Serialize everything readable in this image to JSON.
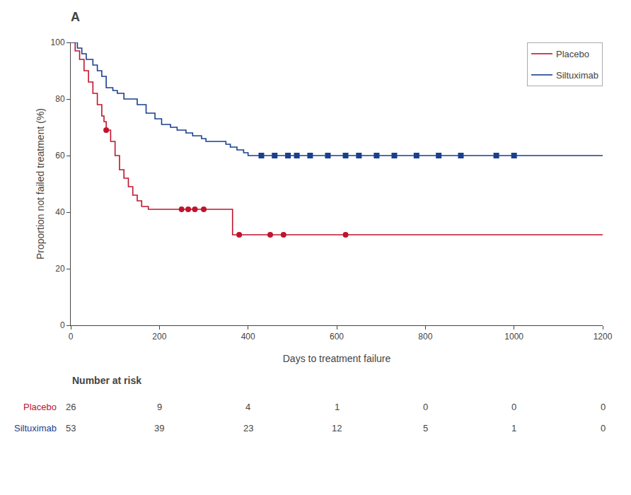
{
  "chart_data": {
    "type": "step",
    "title": "A",
    "xlabel": "Days to treatment failure",
    "ylabel": "Proportion not failed treatment (%)",
    "xlim": [
      0,
      1200
    ],
    "ylim": [
      0,
      100
    ],
    "xticks": [
      0,
      200,
      400,
      600,
      800,
      1000,
      1200
    ],
    "yticks": [
      0,
      20,
      40,
      60,
      80,
      100
    ],
    "grid": false,
    "legend": "upper right",
    "series": [
      {
        "name": "Placebo",
        "color": "#c0142c",
        "marker": "circle",
        "x": [
          0,
          10,
          20,
          30,
          40,
          50,
          60,
          70,
          75,
          80,
          90,
          100,
          110,
          120,
          130,
          140,
          150,
          160,
          175,
          200,
          215,
          230,
          250,
          260,
          280,
          365,
          410,
          430,
          460,
          480,
          620
        ],
        "values": [
          100,
          97,
          94,
          90,
          86,
          82,
          78,
          74,
          72,
          69,
          65,
          60,
          55,
          52,
          49,
          46,
          44,
          42,
          41,
          41,
          41,
          41,
          41,
          41,
          41,
          32,
          32,
          32,
          32,
          32,
          32
        ],
        "censored_x": [
          80,
          250,
          265,
          280,
          300,
          380,
          450,
          480,
          620
        ],
        "censored_values": [
          69,
          41,
          41,
          41,
          41,
          32,
          32,
          32,
          32
        ],
        "at_risk": [
          26,
          9,
          4,
          1,
          0,
          0,
          0
        ]
      },
      {
        "name": "Siltuximab",
        "color": "#1a3f8f",
        "marker": "square",
        "x": [
          0,
          15,
          25,
          35,
          50,
          60,
          70,
          80,
          95,
          105,
          120,
          150,
          170,
          190,
          205,
          225,
          240,
          260,
          275,
          295,
          305,
          315,
          330,
          350,
          360,
          375,
          390,
          400,
          415,
          430,
          460,
          490,
          510,
          540,
          560,
          610,
          640,
          670,
          710,
          750,
          790,
          840,
          890,
          940,
          1000
        ],
        "values": [
          100,
          98,
          96,
          94,
          92,
          90,
          88,
          84,
          83,
          82,
          80,
          78,
          75,
          73,
          71,
          70,
          69,
          68,
          67,
          66,
          65,
          65,
          65,
          64,
          63,
          62,
          61,
          60,
          60,
          60,
          60,
          60,
          60,
          60,
          60,
          60,
          60,
          60,
          60,
          60,
          60,
          60,
          60,
          60,
          60
        ],
        "censored_x": [
          430,
          460,
          490,
          510,
          540,
          580,
          620,
          650,
          690,
          730,
          780,
          830,
          880,
          960,
          1000
        ],
        "censored_values": [
          60,
          60,
          60,
          60,
          60,
          60,
          60,
          60,
          60,
          60,
          60,
          60,
          60,
          60,
          60
        ],
        "at_risk": [
          53,
          39,
          23,
          12,
          5,
          1,
          0
        ]
      }
    ],
    "at_risk_title": "Number at risk",
    "at_risk_x": [
      0,
      200,
      400,
      600,
      800,
      1000,
      1200
    ]
  }
}
